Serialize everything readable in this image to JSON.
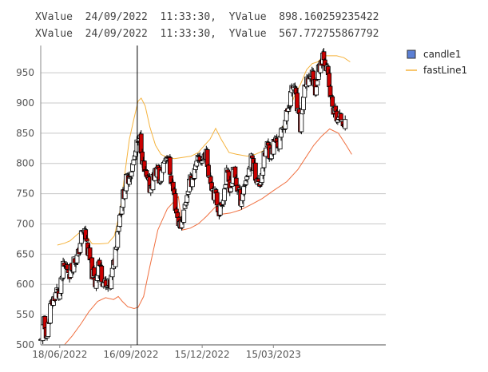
{
  "chart_data": {
    "type": "candlestick",
    "readouts": [
      "XValue  24/09/2022  11:33:30,  YValue  898.160259235422",
      "XValue  24/09/2022  11:33:30,  YValue  567.772755867792"
    ],
    "cursor_date": "2022-09-24",
    "ylim": [
      500,
      995
    ],
    "yticks": [
      500,
      550,
      600,
      650,
      700,
      750,
      800,
      850,
      900,
      950
    ],
    "xlim": [
      "2022-05-25",
      "2023-08-04"
    ],
    "xticks": [
      {
        "date": "2022-06-18",
        "label": "18/06/2022"
      },
      {
        "date": "2022-09-16",
        "label": "16/09/2022"
      },
      {
        "date": "2022-12-15",
        "label": "15/12/2022"
      },
      {
        "date": "2023-03-15",
        "label": "15/03/2023"
      }
    ],
    "grid": true,
    "legend_position": "top-right",
    "colors": {
      "up_candle": "#ffffff",
      "down_candle": "#cc0000",
      "candle_edge": "#000000",
      "legend_candle": "#5b7fd4",
      "upper_line": "#f5b33d",
      "lower_line": "#f07040",
      "grid": "#c8c8c8",
      "axis": "#888888",
      "cursor": "#000000"
    },
    "series": [
      {
        "name": "candle1",
        "kind": "candle",
        "close_path": [
          [
            "2022-05-25",
            505
          ],
          [
            "2022-05-29",
            535
          ],
          [
            "2022-06-02",
            515
          ],
          [
            "2022-06-06",
            560
          ],
          [
            "2022-06-10",
            575
          ],
          [
            "2022-06-14",
            590
          ],
          [
            "2022-06-18",
            580
          ],
          [
            "2022-06-22",
            625
          ],
          [
            "2022-06-27",
            630
          ],
          [
            "2022-07-01",
            620
          ],
          [
            "2022-07-06",
            640
          ],
          [
            "2022-07-11",
            645
          ],
          [
            "2022-07-15",
            680
          ],
          [
            "2022-07-19",
            690
          ],
          [
            "2022-07-23",
            660
          ],
          [
            "2022-07-28",
            625
          ],
          [
            "2022-08-02",
            600
          ],
          [
            "2022-08-06",
            640
          ],
          [
            "2022-08-10",
            615
          ],
          [
            "2022-08-16",
            590
          ],
          [
            "2022-08-21",
            600
          ],
          [
            "2022-08-26",
            640
          ],
          [
            "2022-08-31",
            700
          ],
          [
            "2022-09-05",
            740
          ],
          [
            "2022-09-10",
            770
          ],
          [
            "2022-09-15",
            785
          ],
          [
            "2022-09-19",
            800
          ],
          [
            "2022-09-24",
            830
          ],
          [
            "2022-09-28",
            840
          ],
          [
            "2022-10-02",
            790
          ],
          [
            "2022-10-06",
            770
          ],
          [
            "2022-10-10",
            760
          ],
          [
            "2022-10-15",
            780
          ],
          [
            "2022-10-19",
            790
          ],
          [
            "2022-10-23",
            770
          ],
          [
            "2022-10-27",
            800
          ],
          [
            "2022-11-01",
            820
          ],
          [
            "2022-11-05",
            780
          ],
          [
            "2022-11-09",
            750
          ],
          [
            "2022-11-13",
            715
          ],
          [
            "2022-11-17",
            695
          ],
          [
            "2022-11-22",
            720
          ],
          [
            "2022-11-27",
            760
          ],
          [
            "2022-12-02",
            775
          ],
          [
            "2022-12-07",
            790
          ],
          [
            "2022-12-11",
            810
          ],
          [
            "2022-12-15",
            805
          ],
          [
            "2022-12-19",
            820
          ],
          [
            "2022-12-23",
            790
          ],
          [
            "2022-12-28",
            760
          ],
          [
            "2023-01-02",
            740
          ],
          [
            "2023-01-06",
            720
          ],
          [
            "2023-01-11",
            750
          ],
          [
            "2023-01-15",
            780
          ],
          [
            "2023-01-20",
            760
          ],
          [
            "2023-01-24",
            790
          ],
          [
            "2023-01-28",
            760
          ],
          [
            "2023-02-02",
            740
          ],
          [
            "2023-02-07",
            770
          ],
          [
            "2023-02-12",
            790
          ],
          [
            "2023-02-16",
            810
          ],
          [
            "2023-02-21",
            780
          ],
          [
            "2023-02-25",
            760
          ],
          [
            "2023-03-02",
            800
          ],
          [
            "2023-03-07",
            830
          ],
          [
            "2023-03-12",
            815
          ],
          [
            "2023-03-17",
            840
          ],
          [
            "2023-03-22",
            830
          ],
          [
            "2023-03-27",
            860
          ],
          [
            "2023-04-01",
            880
          ],
          [
            "2023-04-05",
            910
          ],
          [
            "2023-04-10",
            930
          ],
          [
            "2023-04-14",
            890
          ],
          [
            "2023-04-18",
            860
          ],
          [
            "2023-04-22",
            910
          ],
          [
            "2023-04-27",
            935
          ],
          [
            "2023-05-02",
            950
          ],
          [
            "2023-05-07",
            925
          ],
          [
            "2023-05-12",
            960
          ],
          [
            "2023-05-17",
            985
          ],
          [
            "2023-05-21",
            960
          ],
          [
            "2023-05-25",
            920
          ],
          [
            "2023-05-29",
            890
          ],
          [
            "2023-06-02",
            880
          ],
          [
            "2023-06-06",
            870
          ],
          [
            "2023-06-10",
            880
          ],
          [
            "2023-06-15",
            855
          ]
        ]
      },
      {
        "name": "fastLine1",
        "kind": "line",
        "points": [
          [
            "2022-06-15",
            665
          ],
          [
            "2022-06-24",
            668
          ],
          [
            "2022-07-01",
            672
          ],
          [
            "2022-07-08",
            680
          ],
          [
            "2022-07-15",
            688
          ],
          [
            "2022-07-22",
            680
          ],
          [
            "2022-07-29",
            667
          ],
          [
            "2022-08-08",
            667
          ],
          [
            "2022-08-18",
            668
          ],
          [
            "2022-08-26",
            680
          ],
          [
            "2022-09-02",
            720
          ],
          [
            "2022-09-09",
            790
          ],
          [
            "2022-09-14",
            840
          ],
          [
            "2022-09-20",
            875
          ],
          [
            "2022-09-25",
            903
          ],
          [
            "2022-09-29",
            908
          ],
          [
            "2022-10-04",
            895
          ],
          [
            "2022-10-10",
            860
          ],
          [
            "2022-10-17",
            830
          ],
          [
            "2022-10-24",
            815
          ],
          [
            "2022-11-01",
            810
          ],
          [
            "2022-11-10",
            808
          ],
          [
            "2022-11-20",
            810
          ],
          [
            "2022-12-01",
            812
          ],
          [
            "2022-12-10",
            818
          ],
          [
            "2022-12-18",
            830
          ],
          [
            "2022-12-25",
            840
          ],
          [
            "2023-01-01",
            858
          ],
          [
            "2023-01-08",
            840
          ],
          [
            "2023-01-18",
            818
          ],
          [
            "2023-01-28",
            815
          ],
          [
            "2023-02-10",
            812
          ],
          [
            "2023-02-20",
            815
          ],
          [
            "2023-03-01",
            820
          ],
          [
            "2023-03-12",
            832
          ],
          [
            "2023-03-22",
            845
          ],
          [
            "2023-04-01",
            875
          ],
          [
            "2023-04-10",
            910
          ],
          [
            "2023-04-18",
            930
          ],
          [
            "2023-04-26",
            955
          ],
          [
            "2023-05-03",
            965
          ],
          [
            "2023-05-10",
            968
          ],
          [
            "2023-05-18",
            978
          ],
          [
            "2023-05-25",
            978
          ],
          [
            "2023-06-03",
            978
          ],
          [
            "2023-06-12",
            975
          ],
          [
            "2023-06-20",
            968
          ]
        ]
      },
      {
        "kind": "line",
        "points": [
          [
            "2022-06-24",
            500
          ],
          [
            "2022-07-04",
            515
          ],
          [
            "2022-07-15",
            535
          ],
          [
            "2022-07-25",
            555
          ],
          [
            "2022-08-05",
            572
          ],
          [
            "2022-08-15",
            578
          ],
          [
            "2022-08-25",
            575
          ],
          [
            "2022-08-31",
            580
          ],
          [
            "2022-09-05",
            572
          ],
          [
            "2022-09-12",
            563
          ],
          [
            "2022-09-20",
            560
          ],
          [
            "2022-09-25",
            562
          ],
          [
            "2022-10-02",
            580
          ],
          [
            "2022-10-10",
            630
          ],
          [
            "2022-10-20",
            690
          ],
          [
            "2022-11-01",
            725
          ],
          [
            "2022-11-15",
            745
          ],
          [
            "2022-11-20",
            690
          ],
          [
            "2022-11-30",
            693
          ],
          [
            "2022-12-10",
            700
          ],
          [
            "2022-12-20",
            712
          ],
          [
            "2023-01-02",
            730
          ],
          [
            "2023-01-08",
            716
          ],
          [
            "2023-01-20",
            718
          ],
          [
            "2023-02-01",
            723
          ],
          [
            "2023-02-15",
            732
          ],
          [
            "2023-03-01",
            742
          ],
          [
            "2023-03-15",
            755
          ],
          [
            "2023-04-01",
            770
          ],
          [
            "2023-04-15",
            790
          ],
          [
            "2023-04-25",
            810
          ],
          [
            "2023-05-05",
            830
          ],
          [
            "2023-05-15",
            845
          ],
          [
            "2023-05-25",
            857
          ],
          [
            "2023-06-05",
            850
          ],
          [
            "2023-06-15",
            830
          ],
          [
            "2023-06-22",
            815
          ]
        ]
      }
    ]
  }
}
